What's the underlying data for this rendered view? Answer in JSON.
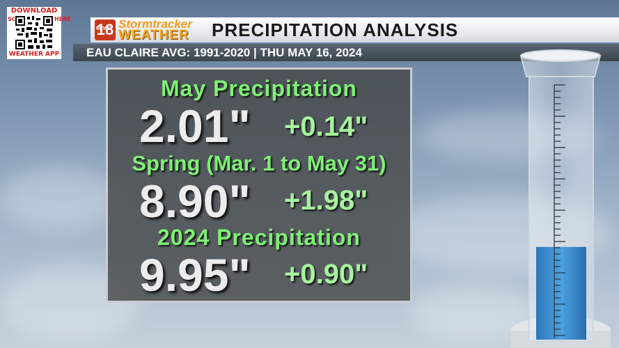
{
  "qr": {
    "top_label": "DOWNLOAD",
    "left_label": "SCAN",
    "right_label": "HERE",
    "bottom_label": "WEATHER APP"
  },
  "header": {
    "logo_news": "NEWS",
    "logo_number": "18",
    "logo_storm": "Stormtracker",
    "logo_weather": "WEATHER",
    "title": "PRECIPITATION ANALYSIS",
    "subtitle": "EAU CLAIRE AVG: 1991-2020 | THU MAY 16, 2024"
  },
  "stats": [
    {
      "heading": "May Precipitation",
      "value": "2.01\"",
      "departure": "+0.14\""
    },
    {
      "heading": "Spring (Mar. 1 to May 31)",
      "value": "8.90\"",
      "departure": "+1.98\""
    },
    {
      "heading": "2024 Precipitation",
      "value": "9.95\"",
      "departure": "+0.90\""
    }
  ],
  "colors": {
    "heading_green": "#7ff075",
    "departure_green": "#a7f39f",
    "value_white": "#ececec",
    "panel": "#464848",
    "logo_orange": "#f5a623",
    "logo_red": "#c8381c",
    "water_blue": "#3d8fd0"
  },
  "gauge": {
    "fill_fraction": 0.36
  }
}
